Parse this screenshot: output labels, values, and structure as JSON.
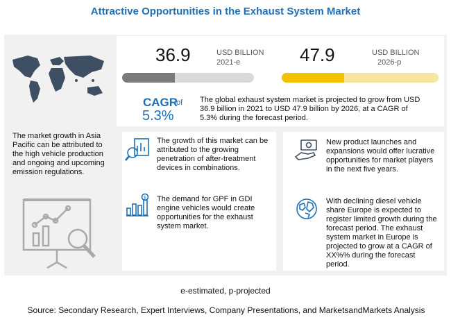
{
  "title": "Attractive Opportunities in the Exhaust System Market",
  "market": {
    "value_2021": "36.9",
    "unit_2021": "USD BILLION",
    "year_2021": "2021-e",
    "value_2026": "47.9",
    "unit_2026": "USD BILLION",
    "year_2026": "2026-p",
    "bar_2021_fill_fraction": 0.4,
    "bar_2026_fill_fraction": 0.4,
    "color_2021": "#7a7a7a",
    "color_2026": "#f2c200"
  },
  "cagr": {
    "label": "CAGR",
    "of": "of",
    "value": "5.3%"
  },
  "summary": "The global exhaust system market is projected to grow from USD 36.9 billion  in 2021 to USD 47.9 billion by 2026, at a CAGR of 5.3% during the forecast period.",
  "left_text": "The market growth in Asia Pacific can be attributed to the high vehicle production and ongoing and upcoming emission regulations.",
  "cards": {
    "after_treatment": "The growth of this market can be attributed to the growing penetration of after-treatment devices in combinations.",
    "gpf": "The demand for GPF in GDI engine vehicles would create opportunities for the exhaust system market.",
    "launches": "New product launches and expansions would offer lucrative opportunities for market players in the next five years.",
    "europe": "With declining diesel vehicle share Europe is expected to register limited growth during the forecast period. The exhaust system market in Europe is projected to grow at a CAGR of XX%% during the forecast period."
  },
  "footnote": "e-estimated, p-projected",
  "source": "Source: Secondary Research, Expert Interviews, Company Presentations, and MarketsandMarkets Analysis",
  "colors": {
    "accent": "#1f6fb5",
    "panel": "#f1f1f1"
  },
  "icons": [
    "world-map-icon",
    "presentation-chart-icon",
    "magnifier-chart-icon",
    "bar-growth-icon",
    "money-hand-icon",
    "globe-icon"
  ]
}
